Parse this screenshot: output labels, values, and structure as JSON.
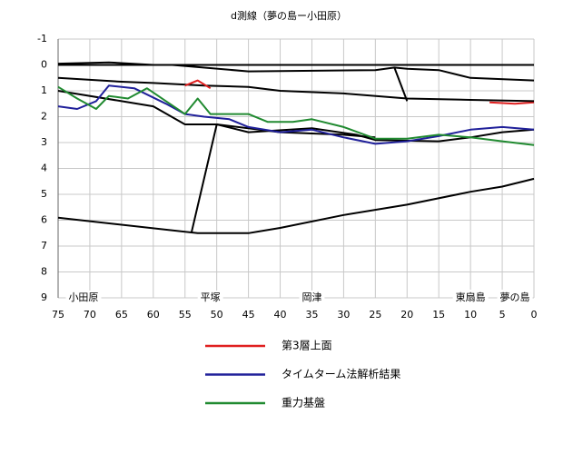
{
  "chart_data": {
    "type": "line",
    "title": "d測線（夢の島ー小田原）",
    "xlim": [
      75,
      0
    ],
    "xticks": [
      75,
      70,
      65,
      60,
      55,
      50,
      45,
      40,
      35,
      30,
      25,
      20,
      15,
      10,
      5,
      0
    ],
    "ylim": [
      -1,
      9
    ],
    "yticks": [
      -1,
      0,
      1,
      2,
      3,
      4,
      5,
      6,
      7,
      8,
      9
    ],
    "y_inverted": true,
    "grid": true,
    "annotations": [
      {
        "text": "小田原",
        "x": 71
      },
      {
        "text": "平塚",
        "x": 51
      },
      {
        "text": "岡津",
        "x": 35
      },
      {
        "text": "東扇島",
        "x": 10
      },
      {
        "text": "夢の島",
        "x": 3
      }
    ],
    "series": [
      {
        "name": "第3層上面",
        "color": "#e02020",
        "x": [
          55,
          53,
          51
        ],
        "values": [
          0.8,
          0.6,
          0.9
        ]
      },
      {
        "name": "タイムターム法解析結果",
        "color": "#20209a",
        "x": [
          75,
          72,
          69,
          67,
          63,
          58,
          55,
          52,
          48,
          45,
          40,
          35,
          30,
          25,
          20,
          15,
          10,
          5,
          0
        ],
        "values": [
          1.6,
          1.7,
          1.4,
          0.8,
          0.9,
          1.5,
          1.9,
          2.0,
          2.1,
          2.4,
          2.6,
          2.5,
          2.8,
          3.05,
          2.95,
          2.75,
          2.5,
          2.4,
          2.5
        ]
      },
      {
        "name": "重力基盤",
        "color": "#208a30",
        "x": [
          75,
          72,
          69,
          67,
          64,
          61,
          58,
          55,
          53,
          51,
          48,
          45,
          42,
          38,
          35,
          30,
          25,
          20,
          15,
          10,
          5,
          0
        ],
        "values": [
          0.85,
          1.3,
          1.7,
          1.2,
          1.3,
          0.9,
          1.4,
          1.9,
          1.3,
          1.9,
          1.9,
          1.9,
          2.2,
          2.2,
          2.1,
          2.4,
          2.85,
          2.85,
          2.7,
          2.8,
          2.95,
          3.1
        ]
      },
      {
        "color": "#e02020",
        "x": [
          7,
          3,
          0
        ],
        "values": [
          1.45,
          1.5,
          1.45
        ]
      },
      {
        "color": "#000000",
        "x": [
          75,
          67,
          60,
          40,
          20,
          0
        ],
        "values": [
          -0.05,
          -0.1,
          0.0,
          0.0,
          0.0,
          0.0
        ]
      },
      {
        "color": "#000000",
        "x": [
          75,
          57,
          45,
          25,
          22,
          20,
          15,
          10,
          0
        ],
        "values": [
          0.0,
          0.0,
          0.25,
          0.2,
          0.1,
          0.15,
          0.2,
          0.5,
          0.6
        ]
      },
      {
        "color": "#000000",
        "x": [
          22,
          20
        ],
        "values": [
          0.1,
          1.4
        ]
      },
      {
        "color": "#000000",
        "x": [
          75,
          65,
          60,
          52,
          45,
          40,
          30,
          20,
          10,
          0
        ],
        "values": [
          0.5,
          0.65,
          0.7,
          0.8,
          0.85,
          1.0,
          1.1,
          1.3,
          1.35,
          1.4
        ]
      },
      {
        "color": "#000000",
        "x": [
          75,
          65,
          60,
          55,
          50,
          45,
          35,
          28,
          25,
          15,
          10,
          5,
          0
        ],
        "values": [
          1.0,
          1.4,
          1.6,
          2.3,
          2.3,
          2.6,
          2.45,
          2.7,
          2.9,
          2.95,
          2.8,
          2.6,
          2.5
        ]
      },
      {
        "color": "#000000",
        "x": [
          75,
          53,
          45,
          40,
          30,
          20,
          10,
          5,
          0
        ],
        "values": [
          5.9,
          6.5,
          6.5,
          6.3,
          5.8,
          5.4,
          4.9,
          4.7,
          4.4
        ]
      },
      {
        "color": "#000000",
        "x": [
          54,
          50,
          40,
          30,
          25
        ],
        "values": [
          6.5,
          2.3,
          2.6,
          2.7,
          2.8
        ]
      }
    ]
  }
}
